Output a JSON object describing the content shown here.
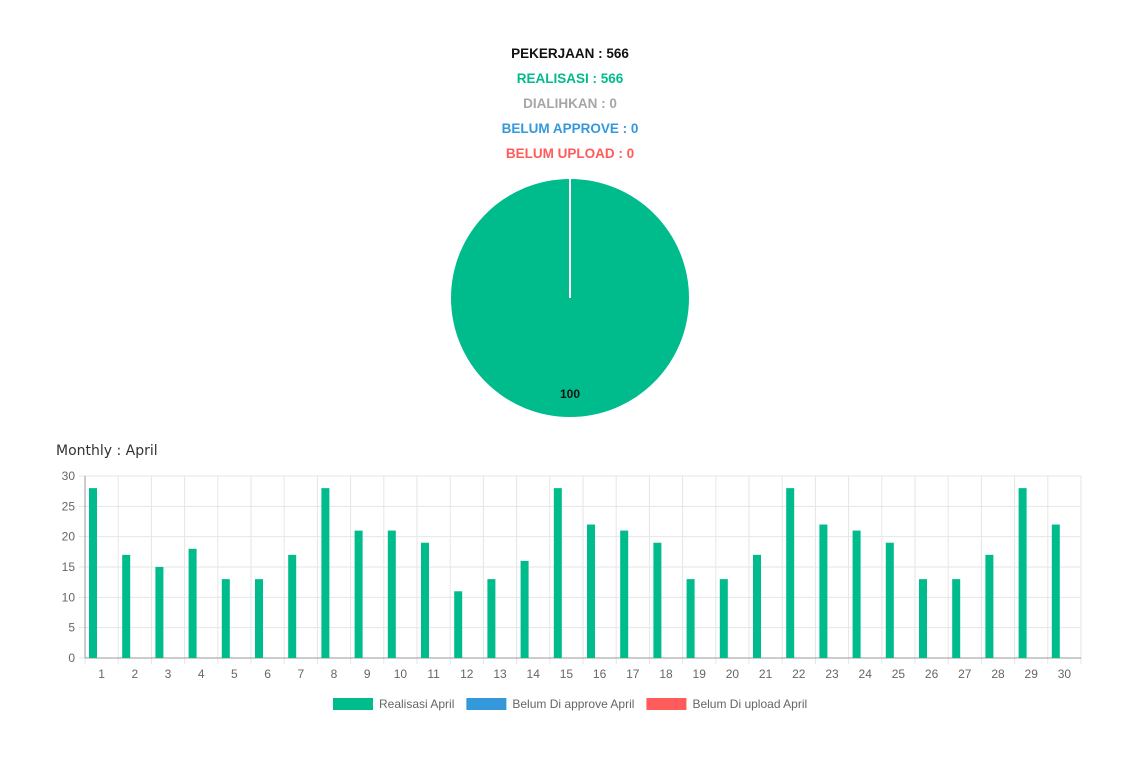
{
  "stats": [
    {
      "label": "PEKERJAAN : 566",
      "color": "#111111"
    },
    {
      "label": "REALISASI : 566",
      "color": "#00bc8c"
    },
    {
      "label": "DIALIHKAN : 0",
      "color": "#a6a6a6"
    },
    {
      "label": "BELUM APPROVE : 0",
      "color": "#3498db"
    },
    {
      "label": "BELUM UPLOAD : 0",
      "color": "#ff5b5b"
    }
  ],
  "colors": {
    "realisasi": "#00bc8c",
    "approve": "#3498db",
    "upload": "#ff5b5b",
    "grid": "#e6e6e6",
    "axis_text": "#666666"
  },
  "chart_data": [
    {
      "type": "pie",
      "slices": [
        {
          "name": "Realisasi",
          "value": 100,
          "color": "#00bc8c"
        },
        {
          "name": "Dialihkan",
          "value": 0,
          "color": "#a6a6a6"
        },
        {
          "name": "Belum Approve",
          "value": 0,
          "color": "#3498db"
        },
        {
          "name": "Belum Upload",
          "value": 0,
          "color": "#ff5b5b"
        }
      ],
      "data_label": "100"
    },
    {
      "type": "bar",
      "title": "Monthly : April",
      "categories": [
        "1",
        "2",
        "3",
        "4",
        "5",
        "6",
        "7",
        "8",
        "9",
        "10",
        "11",
        "12",
        "13",
        "14",
        "15",
        "16",
        "17",
        "18",
        "19",
        "20",
        "21",
        "22",
        "23",
        "24",
        "25",
        "26",
        "27",
        "28",
        "29",
        "30"
      ],
      "series": [
        {
          "name": "Realisasi April",
          "color": "#00bc8c",
          "values": [
            28,
            17,
            15,
            18,
            13,
            13,
            17,
            28,
            21,
            21,
            19,
            11,
            13,
            16,
            28,
            22,
            21,
            19,
            13,
            13,
            17,
            28,
            22,
            21,
            19,
            13,
            13,
            17,
            28,
            22
          ]
        },
        {
          "name": "Belum Di approve April",
          "color": "#3498db",
          "values": [
            0,
            0,
            0,
            0,
            0,
            0,
            0,
            0,
            0,
            0,
            0,
            0,
            0,
            0,
            0,
            0,
            0,
            0,
            0,
            0,
            0,
            0,
            0,
            0,
            0,
            0,
            0,
            0,
            0,
            0
          ]
        },
        {
          "name": "Belum Di upload April",
          "color": "#ff5b5b",
          "values": [
            0,
            0,
            0,
            0,
            0,
            0,
            0,
            0,
            0,
            0,
            0,
            0,
            0,
            0,
            0,
            0,
            0,
            0,
            0,
            0,
            0,
            0,
            0,
            0,
            0,
            0,
            0,
            0,
            0,
            0
          ]
        }
      ],
      "yticks": [
        "0",
        "5",
        "10",
        "15",
        "20",
        "25",
        "30"
      ],
      "ylim": [
        0,
        30
      ],
      "grid": true,
      "legend": "bottom"
    }
  ]
}
